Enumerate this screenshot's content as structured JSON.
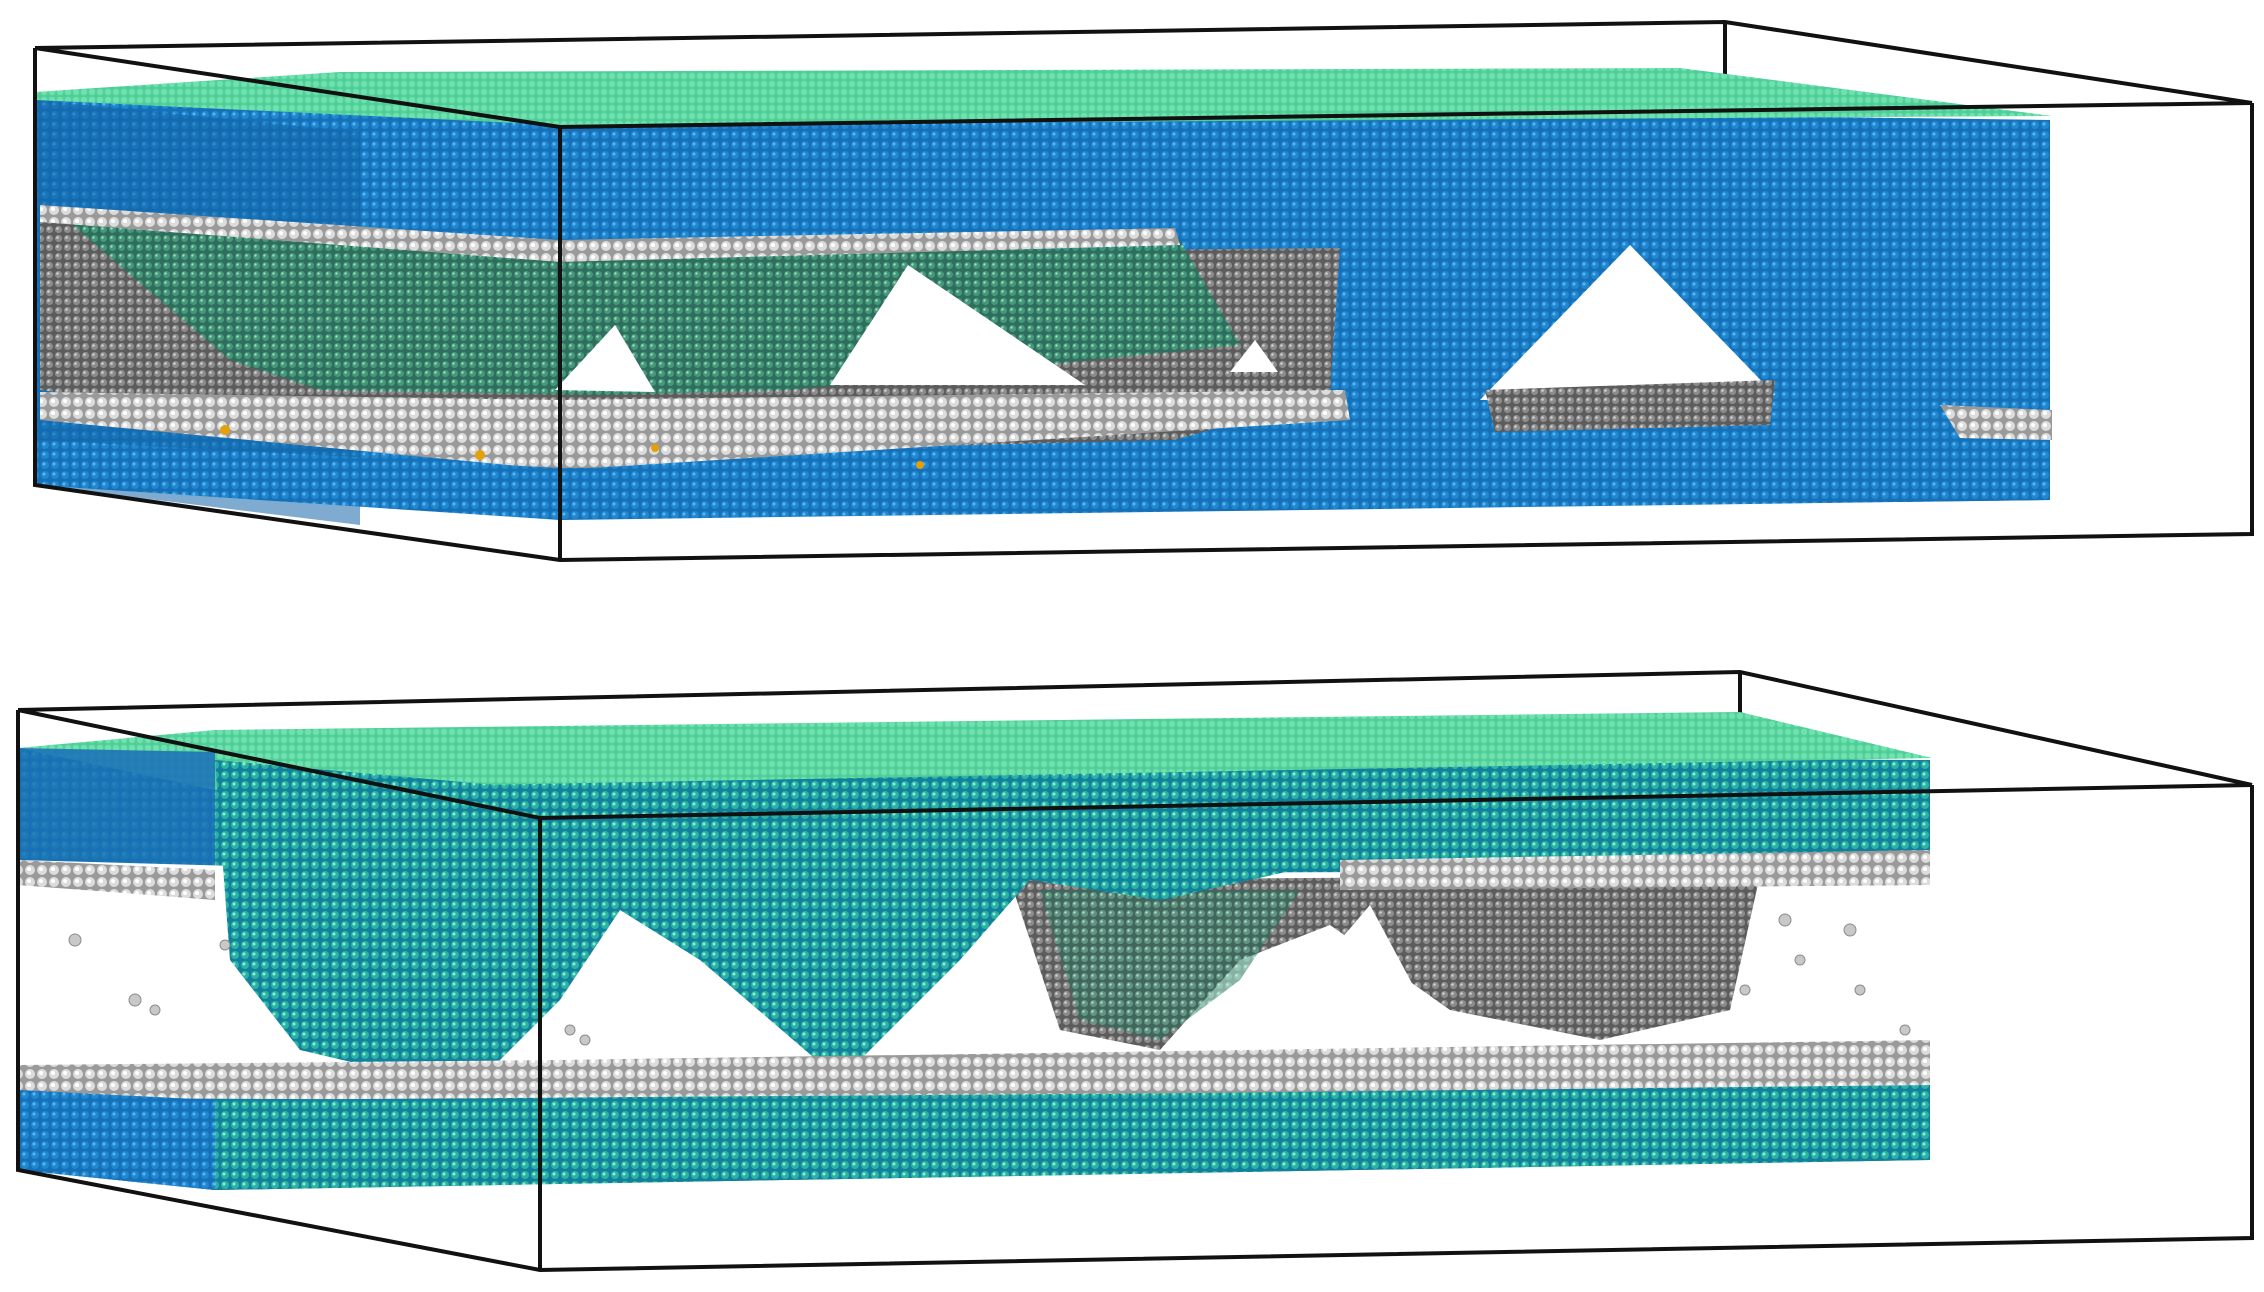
{
  "panels": [
    {
      "name": "top",
      "palette": {
        "atomic": "#1f7fc4",
        "surface": "#5ed6a3",
        "green": "#3fa878",
        "grey": "#8a8a8a",
        "white": "#ececec",
        "defect": "#e3a008"
      },
      "voids": 3,
      "cones": 2
    },
    {
      "name": "bottom",
      "palette": {
        "atomic": "#1a9bb0",
        "surface": "#5ed6a3",
        "green": "#3fa878",
        "grey": "#8a8a8a",
        "white": "#ececec",
        "defect": "#e3a008"
      },
      "voids": 3,
      "cones": 2
    }
  ]
}
